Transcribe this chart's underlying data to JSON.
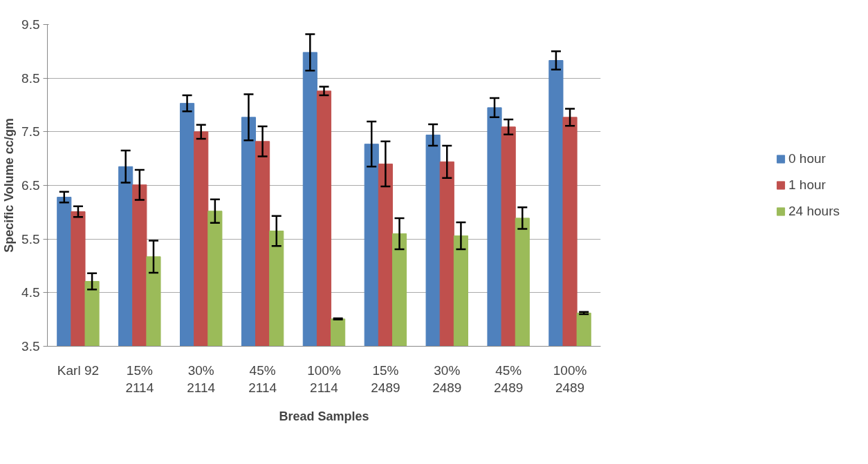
{
  "chart_data": {
    "type": "bar",
    "xlabel": "Bread Samples",
    "ylabel": "Specific Volume cc/gm",
    "categories": [
      "Karl 92",
      "15%\n2114",
      "30%\n2114",
      "45%\n2114",
      "100%\n2114",
      "15%\n2489",
      "30%\n2489",
      "45%\n2489",
      "100%\n2489"
    ],
    "series": [
      {
        "name": "0 hour",
        "color": "#4f81bd",
        "values": [
          6.28,
          6.85,
          8.03,
          7.77,
          8.98,
          7.27,
          7.44,
          7.95,
          8.83
        ],
        "errors": [
          0.1,
          0.3,
          0.15,
          0.43,
          0.34,
          0.42,
          0.2,
          0.18,
          0.17
        ]
      },
      {
        "name": "1 hour",
        "color": "#c0504d",
        "values": [
          6.01,
          6.51,
          7.5,
          7.32,
          8.26,
          6.9,
          6.94,
          7.59,
          7.77
        ],
        "errors": [
          0.1,
          0.28,
          0.13,
          0.28,
          0.08,
          0.42,
          0.3,
          0.14,
          0.16
        ]
      },
      {
        "name": "24 hours",
        "color": "#9bbb59",
        "values": [
          4.71,
          5.17,
          6.02,
          5.65,
          4.01,
          5.6,
          5.56,
          5.89,
          4.12
        ],
        "errors": [
          0.15,
          0.3,
          0.22,
          0.28,
          0.01,
          0.29,
          0.25,
          0.2,
          0.02
        ]
      }
    ],
    "ylim": [
      3.5,
      9.5
    ],
    "yticks": [
      {
        "value": 3.5,
        "label": "3.5"
      },
      {
        "value": 4.5,
        "label": "4.5"
      },
      {
        "value": 5.5,
        "label": "5.5"
      },
      {
        "value": 6.5,
        "label": "6.5"
      },
      {
        "value": 7.5,
        "label": "7.5"
      },
      {
        "value": 8.5,
        "label": "8.5"
      },
      {
        "value": 9.5,
        "label": "9.5"
      }
    ],
    "grid": "y",
    "legend": "right"
  }
}
